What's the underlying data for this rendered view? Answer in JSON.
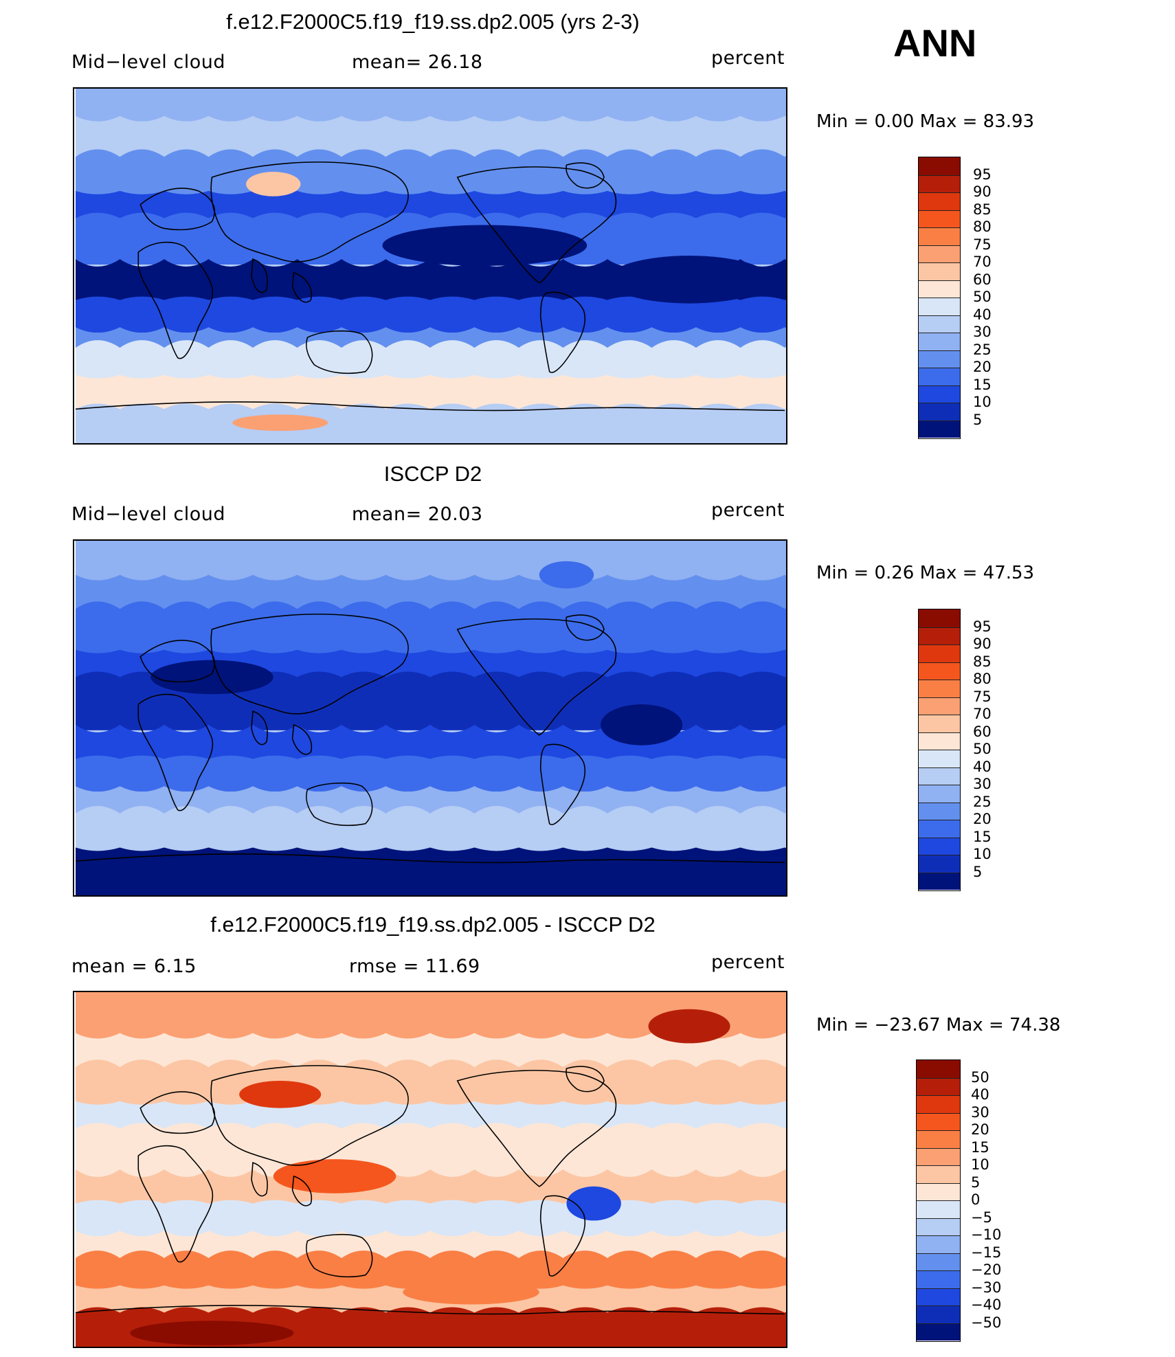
{
  "season": "ANN",
  "panels": [
    {
      "title": "f.e12.F2000C5.f19_f19.ss.dp2.005 (yrs 2-3)",
      "left_label": "Mid−level cloud",
      "center_label": "mean=   26.18",
      "right_label": "percent",
      "minmax": "Min =     0.00  Max =    83.93",
      "colorbar_labels": [
        "95",
        "90",
        "85",
        "80",
        "75",
        "70",
        "60",
        "50",
        "40",
        "30",
        "25",
        "20",
        "15",
        "10",
        "5"
      ],
      "colorbar_colors": [
        "#8a0c00",
        "#b51f0a",
        "#e0380e",
        "#f5561d",
        "#fa7f45",
        "#fba073",
        "#fcc6a4",
        "#fde6d6",
        "#d9e6f7",
        "#b6cdf4",
        "#90b1f2",
        "#6390ee",
        "#3c6ceb",
        "#1e48e0",
        "#0f2eb8",
        "#00137a"
      ]
    },
    {
      "title": "ISCCP D2",
      "left_label": "Mid−level cloud",
      "center_label": "mean=   20.03",
      "right_label": "percent",
      "minmax": "Min =     0.26  Max =    47.53",
      "colorbar_labels": [
        "95",
        "90",
        "85",
        "80",
        "75",
        "70",
        "60",
        "50",
        "40",
        "30",
        "25",
        "20",
        "15",
        "10",
        "5"
      ],
      "colorbar_colors": [
        "#8a0c00",
        "#b51f0a",
        "#e0380e",
        "#f5561d",
        "#fa7f45",
        "#fba073",
        "#fcc6a4",
        "#fde6d6",
        "#d9e6f7",
        "#b6cdf4",
        "#90b1f2",
        "#6390ee",
        "#3c6ceb",
        "#1e48e0",
        "#0f2eb8",
        "#00137a"
      ]
    },
    {
      "title": "f.e12.F2000C5.f19_f19.ss.dp2.005 - ISCCP D2",
      "left_label": "mean =     6.15",
      "center_label": "rmse =    11.69",
      "right_label": "percent",
      "minmax": "Min = −23.67  Max =    74.38",
      "colorbar_labels": [
        "50",
        "40",
        "30",
        "20",
        "15",
        "10",
        "5",
        "0",
        "−5",
        "−10",
        "−15",
        "−20",
        "−30",
        "−40",
        "−50"
      ],
      "colorbar_colors": [
        "#8a0c00",
        "#b51f0a",
        "#e0380e",
        "#f5561d",
        "#fa7f45",
        "#fba073",
        "#fcc6a4",
        "#fde6d6",
        "#d9e6f7",
        "#b6cdf4",
        "#90b1f2",
        "#6390ee",
        "#3c6ceb",
        "#1e48e0",
        "#0f2eb8",
        "#00137a"
      ]
    }
  ]
}
